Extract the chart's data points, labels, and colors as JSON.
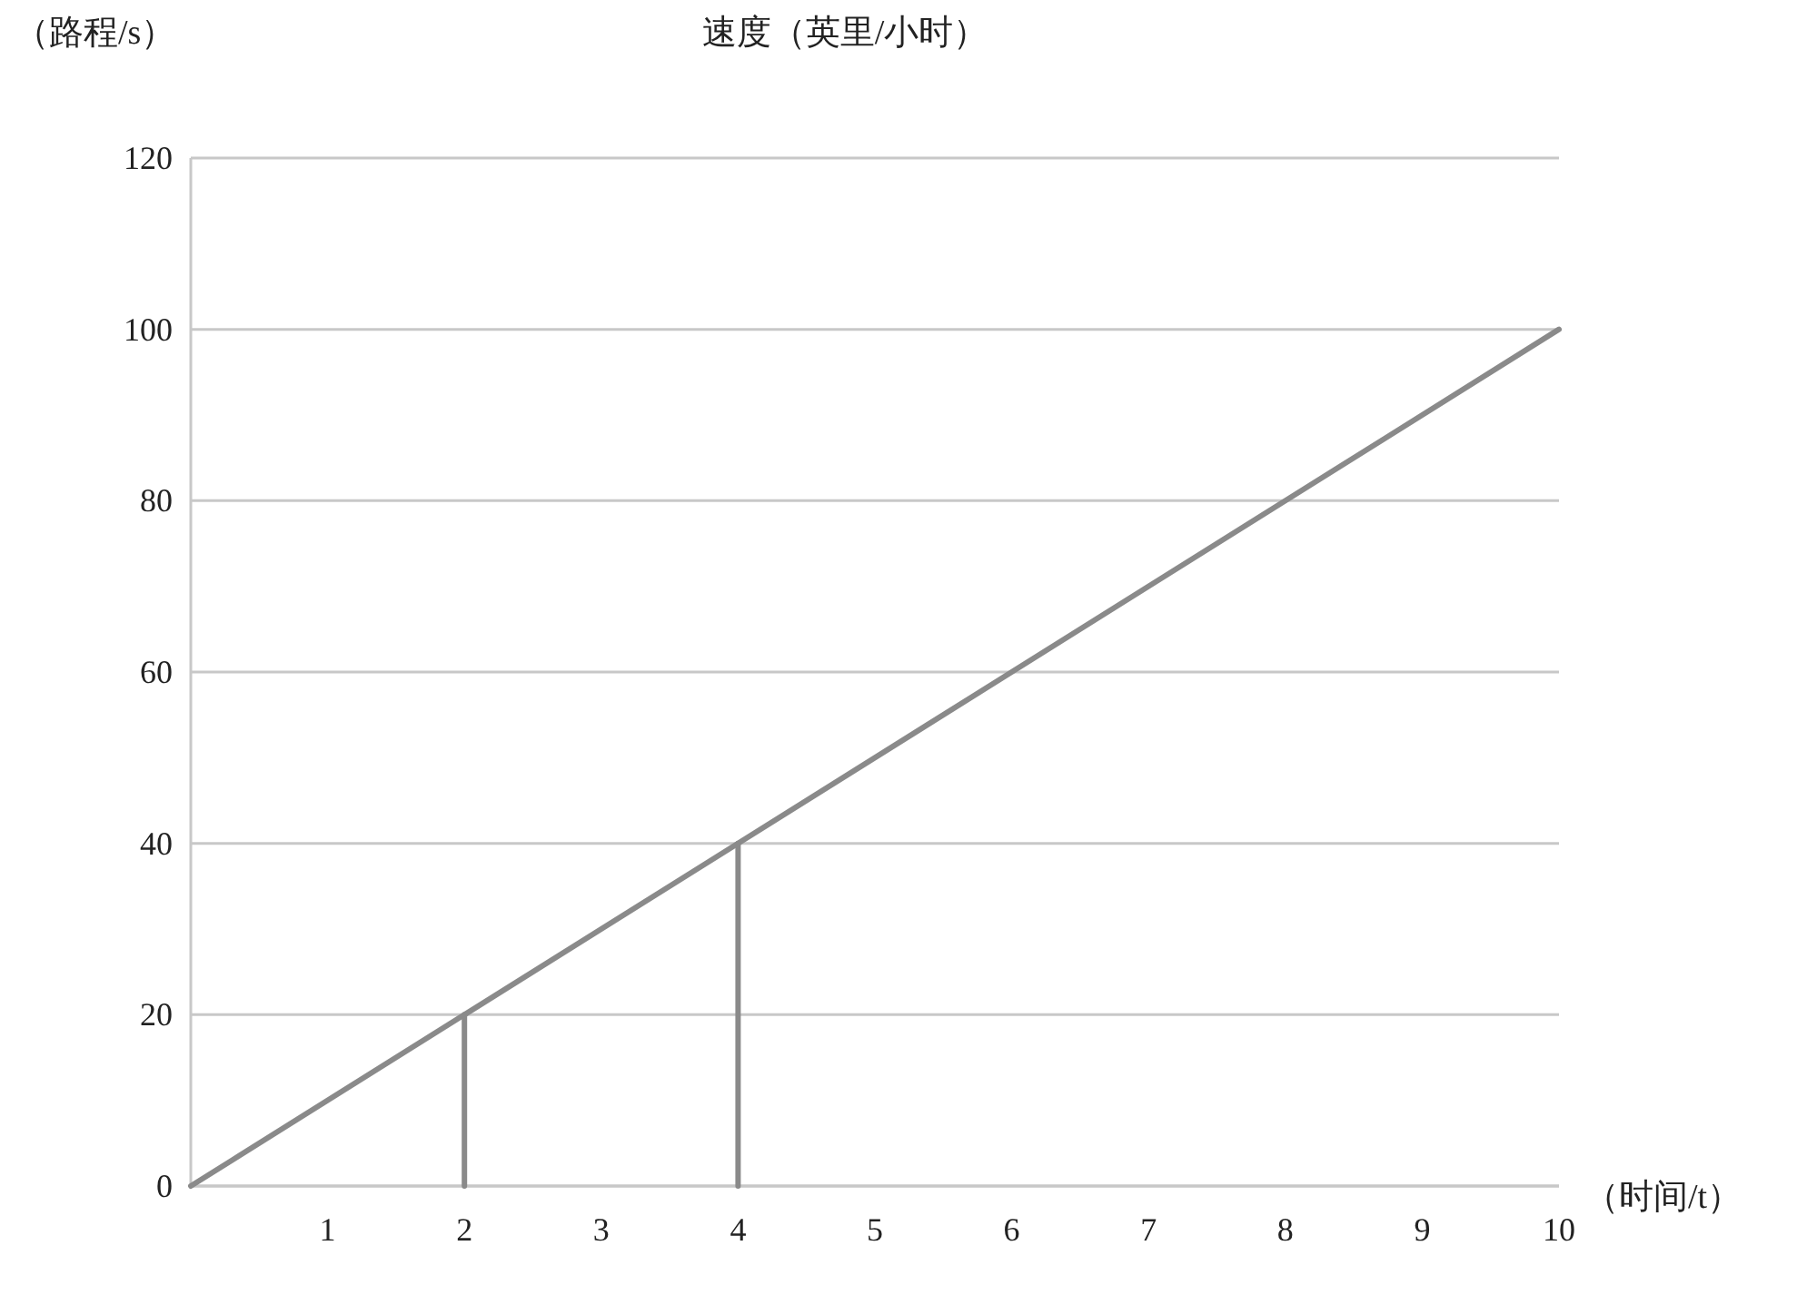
{
  "chart_data": {
    "type": "line",
    "title": "速度（英里/小时）",
    "ylabel": "（路程/s）",
    "xlabel": "（时间/t）",
    "xlim": [
      0,
      10
    ],
    "ylim": [
      0,
      120
    ],
    "xticks": [
      1,
      2,
      3,
      4,
      5,
      6,
      7,
      8,
      9,
      10
    ],
    "yticks": [
      0,
      20,
      40,
      60,
      80,
      100,
      120
    ],
    "grid": "y",
    "marker": "none",
    "line_style": "solid",
    "series": [
      {
        "x": [
          0,
          10
        ],
        "values": [
          0,
          100
        ],
        "color": "#8a8a8a"
      },
      {
        "x": [
          2,
          2
        ],
        "values": [
          0,
          20
        ],
        "color": "#8a8a8a"
      },
      {
        "x": [
          4,
          4
        ],
        "values": [
          0,
          40
        ],
        "color": "#8a8a8a"
      }
    ]
  }
}
